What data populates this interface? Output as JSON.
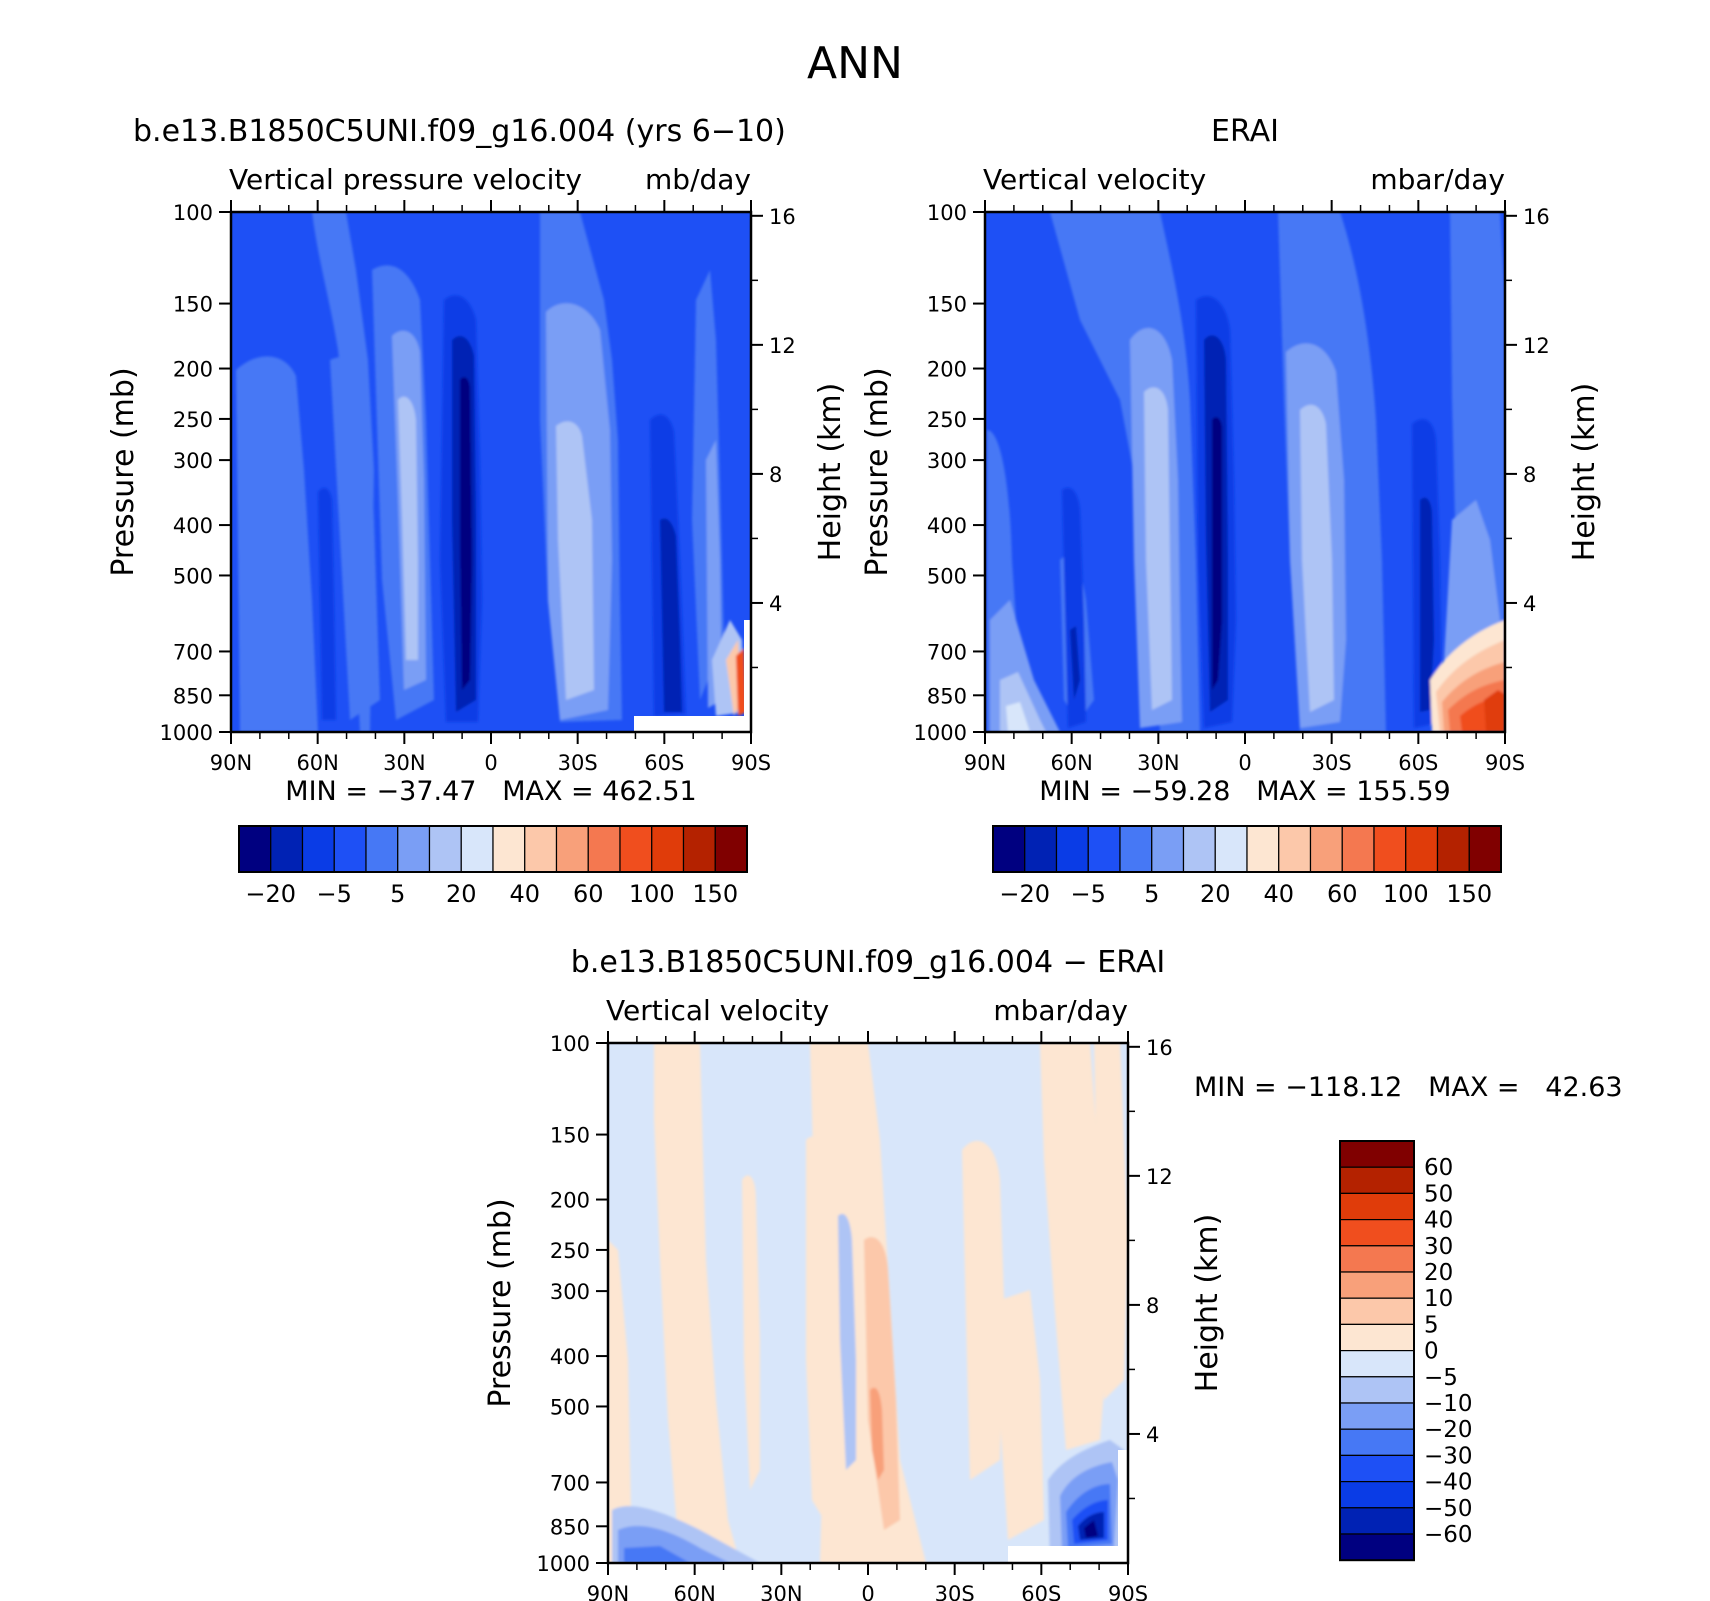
{
  "figure": {
    "title": "ANN",
    "panels": [
      {
        "id": "model",
        "title": "b.e13.B1850C5UNI.f09_g16.004 (yrs 6−10)",
        "left_label": "Vertical pressure velocity",
        "right_label": "mb/day",
        "stats": "MIN = −37.47   MAX = 462.51"
      },
      {
        "id": "obs",
        "title": "ERAI",
        "left_label": "Vertical velocity",
        "right_label": "mbar/day",
        "stats": "MIN = −59.28   MAX = 155.59"
      },
      {
        "id": "diff",
        "title": "b.e13.B1850C5UNI.f09_g16.004 − ERAI",
        "left_label": "Vertical velocity",
        "right_label": "mbar/day",
        "stats": "MIN = −118.12   MAX =   42.63"
      }
    ],
    "y_label": "Pressure (mb)",
    "y2_label": "Height (km)",
    "pressure_ticks": [
      "100",
      "150",
      "200",
      "250",
      "300",
      "400",
      "500",
      "700",
      "850",
      "1000"
    ],
    "height_ticks": [
      "16",
      "12",
      "8",
      "4"
    ],
    "lat_ticks": [
      "90N",
      "60N",
      "30N",
      "0",
      "30S",
      "60S",
      "90S"
    ],
    "colorbar_top": {
      "colors": [
        "#000080",
        "#0022b4",
        "#0a3ce6",
        "#1e50f5",
        "#4678f5",
        "#7a9ef5",
        "#aec4f5",
        "#d8e6fa",
        "#fde6d2",
        "#fcc8aa",
        "#f8a07a",
        "#f47850",
        "#f04e1e",
        "#e03c0a",
        "#b42200",
        "#800000"
      ],
      "labels": [
        "−20",
        "−5",
        "5",
        "20",
        "40",
        "60",
        "100",
        "150"
      ]
    },
    "colorbar_diff": {
      "colors": [
        "#800000",
        "#b42200",
        "#e03c0a",
        "#f04e1e",
        "#f47850",
        "#f8a07a",
        "#fcc8aa",
        "#fde6d2",
        "#d8e6fa",
        "#aec4f5",
        "#7a9ef5",
        "#4678f5",
        "#1e50f5",
        "#0a3ce6",
        "#0022b4",
        "#000080"
      ],
      "labels": [
        "60",
        "50",
        "40",
        "30",
        "20",
        "10",
        "5",
        "0",
        "−5",
        "−10",
        "−20",
        "−30",
        "−40",
        "−50",
        "−60"
      ]
    }
  },
  "chart_data": [
    {
      "type": "heatmap",
      "title": "b.e13.B1850C5UNI.f09_g16.004 (yrs 6−10)",
      "subtitle": "Vertical pressure velocity",
      "units": "mb/day",
      "xlabel": "",
      "ylabel": "Pressure (mb)",
      "y2label": "Height (km)",
      "x_range": [
        "90N",
        "90S"
      ],
      "y_range": [
        100,
        1000
      ],
      "y_scale": "log",
      "min": -37.47,
      "max": 462.51,
      "levels": [
        -30,
        -20,
        -10,
        -5,
        0,
        5,
        10,
        20,
        30,
        40,
        50,
        60,
        80,
        100,
        120,
        150
      ],
      "features": [
        "strong ascent near 8N (values below −20 mb/day)",
        "descent near 25N and 20S (5 to 20 mb/day)",
        "high positive values near the surface at 75S–90S"
      ]
    },
    {
      "type": "heatmap",
      "title": "ERAI",
      "subtitle": "Vertical velocity",
      "units": "mbar/day",
      "xlabel": "",
      "ylabel": "Pressure (mb)",
      "y2label": "Height (km)",
      "x_range": [
        "90N",
        "90S"
      ],
      "y_range": [
        100,
        1000
      ],
      "y_scale": "log",
      "min": -59.28,
      "max": 155.59,
      "levels": [
        -30,
        -20,
        -10,
        -5,
        0,
        5,
        10,
        20,
        30,
        40,
        50,
        60,
        80,
        100,
        120,
        150
      ],
      "features": [
        "strong ascent near 5N",
        "descent near 25N and 20S",
        "strong descent (40–150 mbar/day) near the surface at 70S–90S"
      ]
    },
    {
      "type": "heatmap",
      "title": "b.e13.B1850C5UNI.f09_g16.004 − ERAI",
      "subtitle": "Vertical velocity",
      "units": "mbar/day",
      "xlabel": "",
      "ylabel": "Pressure (mb)",
      "y2label": "Height (km)",
      "x_range": [
        "90N",
        "90S"
      ],
      "y_range": [
        100,
        1000
      ],
      "y_scale": "log",
      "min": -118.12,
      "max": 42.63,
      "levels": [
        -60,
        -50,
        -40,
        -30,
        -20,
        -10,
        -5,
        0,
        5,
        10,
        20,
        30,
        40,
        50,
        60
      ],
      "features": [
        "mostly within −5 to 5 mbar/day",
        "positive (5–10) near the equator at 300–800 mb",
        "strong negative values near the surface at 70S–85S"
      ]
    }
  ]
}
